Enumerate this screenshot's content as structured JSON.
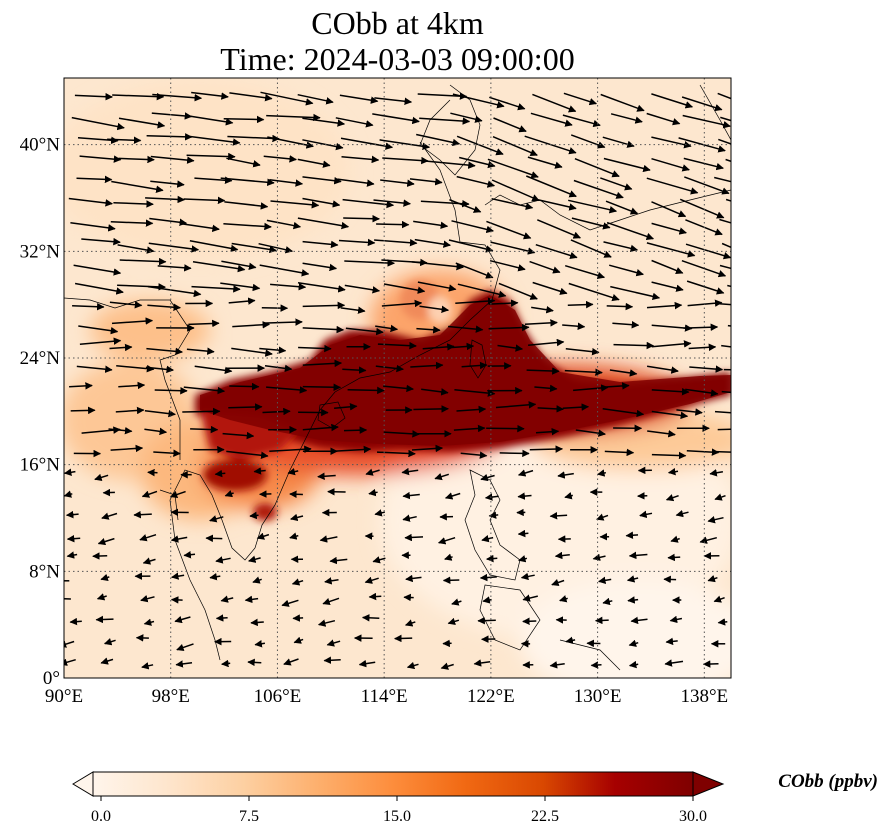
{
  "title": {
    "line1": "CObb at 4km",
    "line2": "Time: 2024-03-03 09:00:00"
  },
  "map": {
    "lon_range": [
      90,
      140
    ],
    "lat_range": [
      0,
      45
    ],
    "lat_ticks": [
      {
        "value": 0,
        "label": "0°"
      },
      {
        "value": 8,
        "label": "8°N"
      },
      {
        "value": 16,
        "label": "16°N"
      },
      {
        "value": 24,
        "label": "24°N"
      },
      {
        "value": 32,
        "label": "32°N"
      },
      {
        "value": 40,
        "label": "40°N"
      }
    ],
    "lon_ticks": [
      {
        "value": 90,
        "label": "90°E"
      },
      {
        "value": 98,
        "label": "98°E"
      },
      {
        "value": 106,
        "label": "106°E"
      },
      {
        "value": 114,
        "label": "114°E"
      },
      {
        "value": 122,
        "label": "122°E"
      },
      {
        "value": 130,
        "label": "130°E"
      },
      {
        "value": 138,
        "label": "138°E"
      }
    ],
    "gridlines": true
  },
  "colorbar": {
    "label": "CObb (ppbv)",
    "min": 0,
    "max": 30,
    "ticks": [
      "0.0",
      "7.5",
      "15.0",
      "22.5",
      "30.0"
    ],
    "colormap": [
      "#fff5eb",
      "#fee6ce",
      "#fdd0a2",
      "#fdae6b",
      "#fd8d3c",
      "#f16913",
      "#d94801",
      "#a63603",
      "#7f2704"
    ],
    "extend": "both"
  }
}
